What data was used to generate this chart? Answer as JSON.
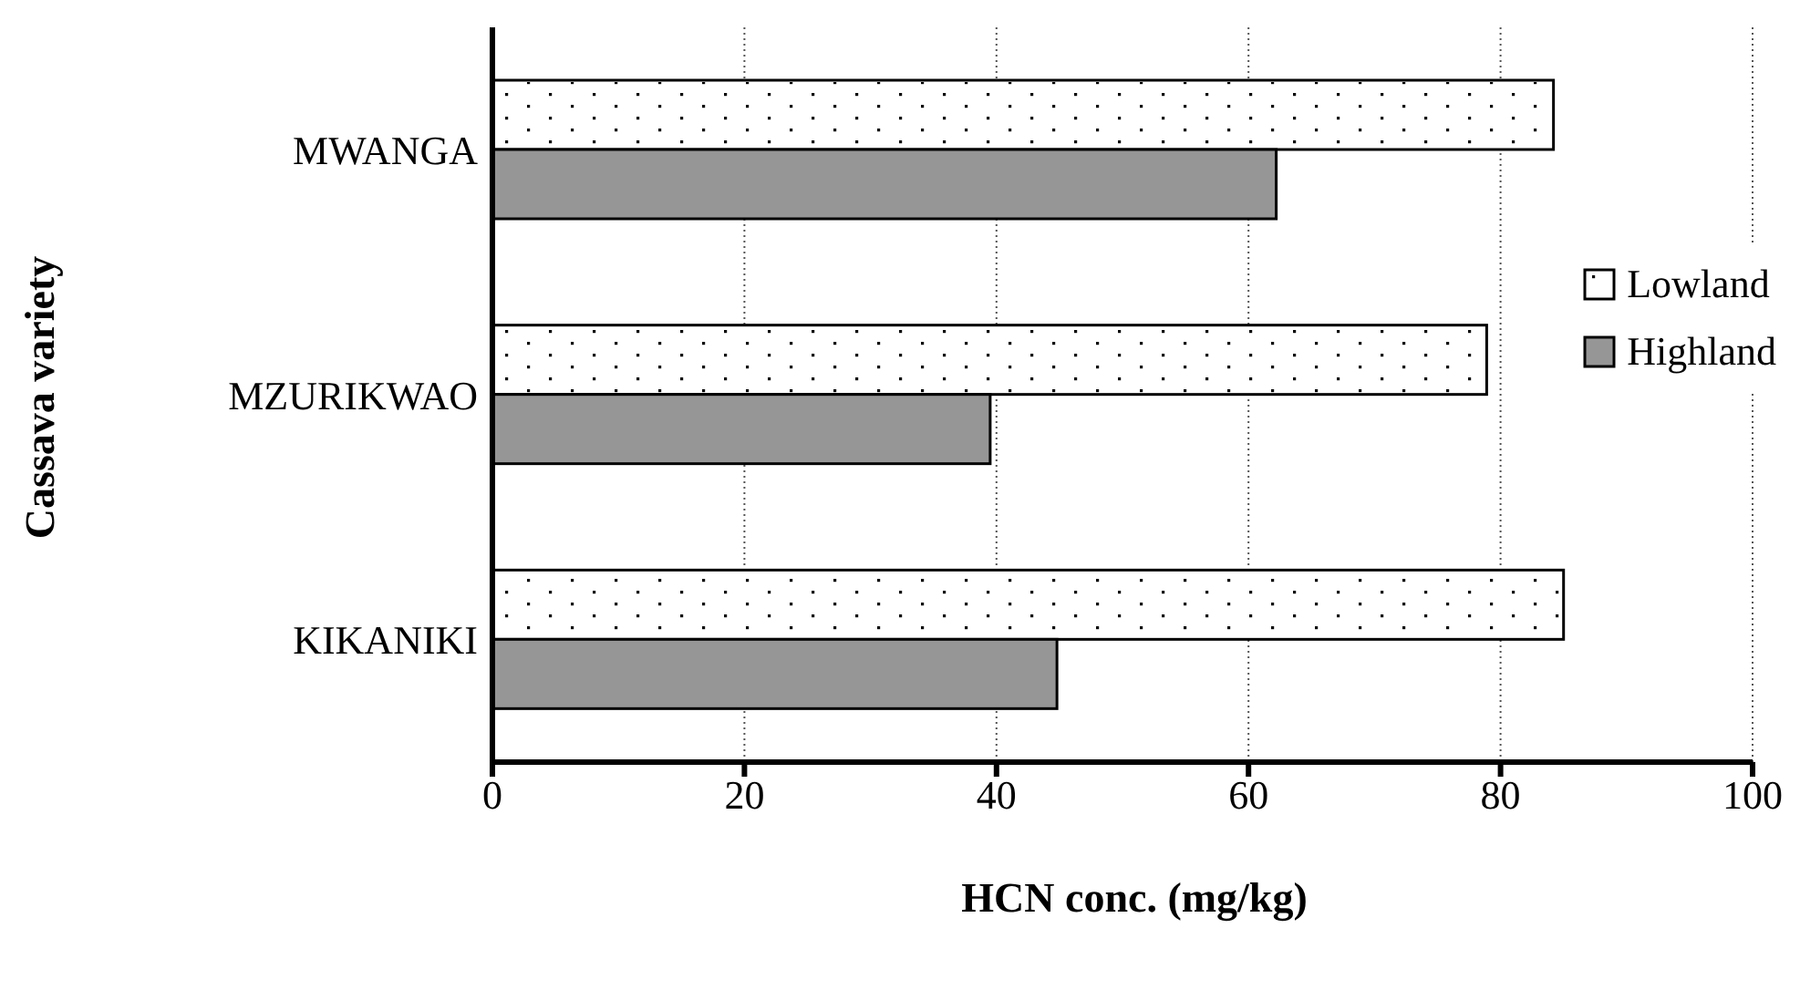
{
  "chart_data": {
    "type": "bar",
    "orientation": "horizontal",
    "xlabel": "HCN conc. (mg/kg)",
    "ylabel": "Cassava variety",
    "categories": [
      "MWANGA",
      "MZURIKWAO",
      "KIKANIKI"
    ],
    "series": [
      {
        "name": "Lowland",
        "color": "#ffffff",
        "values": [
          84.2,
          78.9,
          85.0
        ]
      },
      {
        "name": "Highland",
        "color": "#969696",
        "values": [
          62.2,
          39.5,
          44.8
        ]
      }
    ],
    "xlim": [
      0,
      100
    ],
    "xticks": [
      0,
      20,
      40,
      60,
      80,
      100
    ],
    "grid": "x",
    "legend": "right"
  }
}
